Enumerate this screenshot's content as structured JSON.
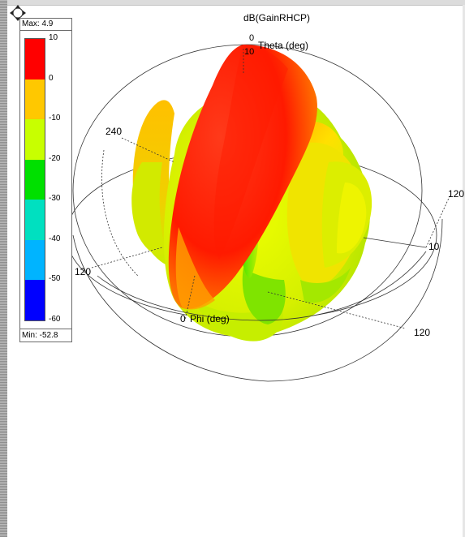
{
  "plot": {
    "title": "dB(GainRHCP)",
    "theta_label": "Theta (deg)",
    "phi_label": "Phi (deg)",
    "theta_zero": "0",
    "phi_zero": "0",
    "label_240": "240",
    "label_120_left": "120",
    "label_120_right_top": "120",
    "label_120_right_bottom": "120",
    "label_10_top": "10",
    "label_10_right": "10"
  },
  "legend": {
    "max_label": "Max: 4.9",
    "min_label": "Min: -52.8",
    "ticks": [
      "10",
      "0",
      "-10",
      "-20",
      "-30",
      "-40",
      "-50",
      "-60"
    ],
    "colors": [
      "#ff0000",
      "#ffc800",
      "#c8ff00",
      "#00e000",
      "#00e0c0",
      "#00b4ff",
      "#0000ff"
    ]
  }
}
